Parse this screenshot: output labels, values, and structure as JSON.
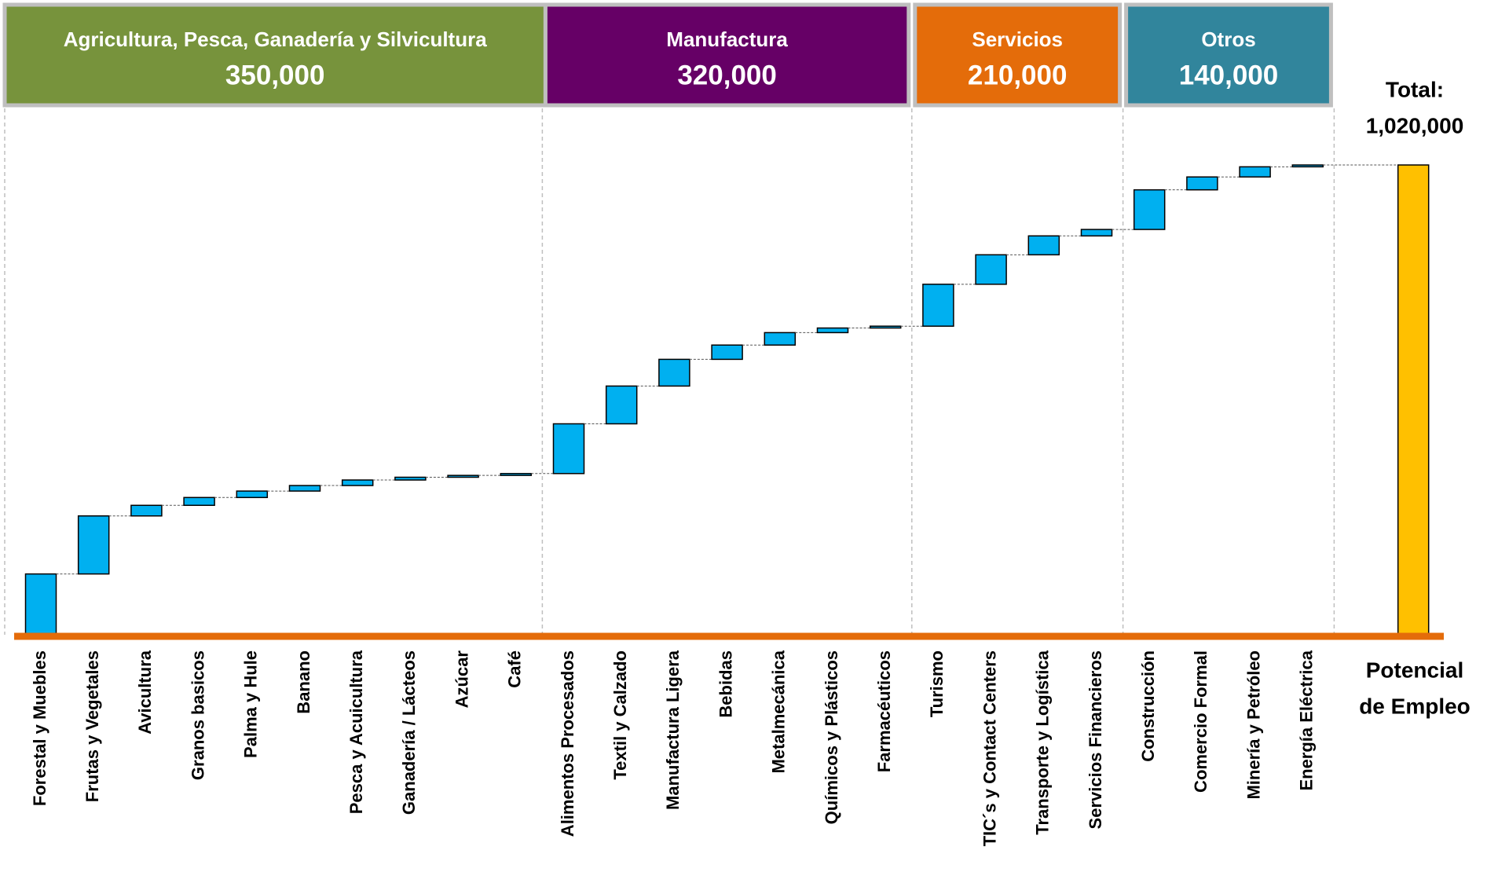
{
  "chart_data": {
    "type": "waterfall",
    "bar_color": "#00b0f0",
    "total_color": "#ffc000",
    "axis_color": "#e46c0a",
    "groups": [
      {
        "name": "Agricultura, Pesca, Ganadería y Silvicultura",
        "value": 350000,
        "value_label": "350,000",
        "color": "#77933c",
        "categories": [
          "Forestal y Muebles",
          "Frutas y Vegetales",
          "Avicultura",
          "Granos basicos",
          "Palma y Hule",
          "Banano",
          "Pesca y Acuicultura",
          "Ganadería / Lácteos",
          "Azúcar",
          "Café"
        ],
        "values": [
          132000,
          126000,
          23000,
          17000,
          14000,
          12000,
          12000,
          6000,
          4000,
          4000
        ]
      },
      {
        "name": "Manufactura",
        "value": 320000,
        "value_label": "320,000",
        "color": "#660066",
        "categories": [
          "Alimentos Procesados",
          "Textil y Calzado",
          "Manufactura Ligera",
          "Bebidas",
          "Metalmecánica",
          "Químicos y Plásticos",
          "Farmacéuticos"
        ],
        "values": [
          108000,
          82000,
          58000,
          31000,
          27000,
          10000,
          4000
        ]
      },
      {
        "name": "Servicios",
        "value": 210000,
        "value_label": "210,000",
        "color": "#e46c0a",
        "categories": [
          "Turismo",
          "TIC´s y Contact Centers",
          "Transporte y Logística",
          "Servicios Financieros"
        ],
        "values": [
          91000,
          64000,
          41000,
          14000
        ]
      },
      {
        "name": "Otros",
        "value": 140000,
        "value_label": "140,000",
        "color": "#31859c",
        "categories": [
          "Construcción",
          "Comercio Formal",
          "Minería y Petróleo",
          "Energía Eléctrica"
        ],
        "values": [
          86000,
          28000,
          22000,
          4000
        ]
      }
    ],
    "total": {
      "caption": "Total:",
      "value": 1020000,
      "value_label": "1,020,000",
      "name": [
        "Potencial",
        "de Empleo"
      ]
    }
  }
}
